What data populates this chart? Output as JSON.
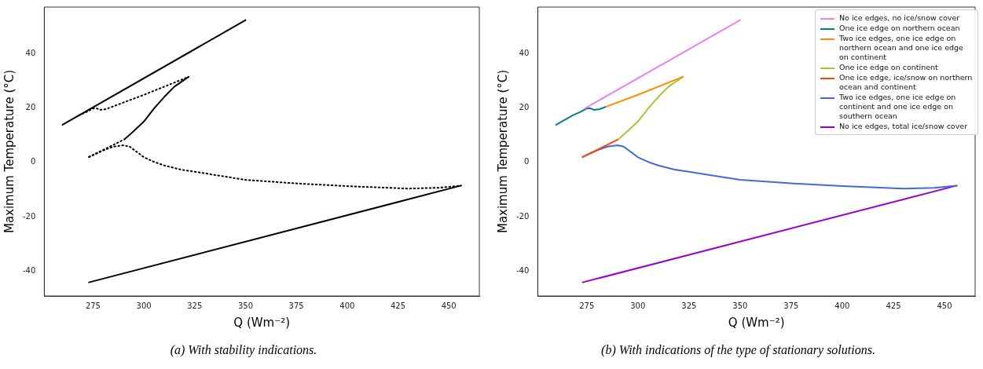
{
  "chart_data": [
    {
      "type": "line",
      "annotations": [
        "(a) With stability indications."
      ],
      "xlabel": "Q (Wm⁻²)",
      "ylabel": "Maximum Temperature (°C)",
      "xlim": [
        251,
        465
      ],
      "ylim": [
        -49,
        57
      ],
      "xticks": [
        275,
        300,
        325,
        350,
        375,
        400,
        425,
        450
      ],
      "yticks": [
        -40,
        -20,
        0,
        20,
        40
      ],
      "grid": false,
      "legend": false,
      "series": [
        {
          "color": "#000000",
          "line_style": "solid",
          "x": [
            260,
            350
          ],
          "values": [
            13.8,
            52.2
          ]
        },
        {
          "color": "#000000",
          "line_style": "dotted",
          "x": [
            268,
            272,
            275,
            276.5,
            278.5,
            281,
            284,
            300,
            322
          ],
          "values": [
            17.2,
            18.6,
            19.8,
            19.9,
            19.3,
            19.5,
            20.3,
            24.8,
            31.4
          ]
        },
        {
          "color": "#000000",
          "line_style": "solid",
          "x": [
            290.5,
            295,
            300,
            305,
            310,
            315,
            322
          ],
          "values": [
            8.5,
            11.5,
            15,
            19.8,
            24,
            27.8,
            31.4
          ]
        },
        {
          "color": "#000000",
          "line_style": "dotted",
          "x": [
            273,
            290.5
          ],
          "values": [
            2,
            8.5
          ]
        },
        {
          "color": "#000000",
          "line_style": "dotted",
          "x": [
            273,
            280,
            285,
            290,
            293,
            297,
            300,
            305,
            310,
            318,
            325,
            340,
            350,
            375,
            400,
            430,
            445,
            456
          ],
          "values": [
            2,
            4.4,
            5.8,
            6.3,
            5.8,
            3.6,
            1.9,
            0.2,
            -1.1,
            -2.6,
            -3.4,
            -5.2,
            -6.4,
            -7.7,
            -8.7,
            -9.6,
            -9.3,
            -8.5
          ]
        },
        {
          "color": "#000000",
          "line_style": "solid",
          "x": [
            273,
            456
          ],
          "values": [
            -44,
            -8.5
          ]
        }
      ]
    },
    {
      "type": "line",
      "annotations": [
        "(b) With indications of the type of stationary solutions."
      ],
      "xlabel": "Q (Wm⁻²)",
      "ylabel": "Maximum Temperature (°C)",
      "xlim": [
        251,
        465
      ],
      "ylim": [
        -49,
        57
      ],
      "xticks": [
        275,
        300,
        325,
        350,
        375,
        400,
        425,
        450
      ],
      "yticks": [
        -40,
        -20,
        0,
        20,
        40
      ],
      "grid": false,
      "legend": "top right",
      "series": [
        {
          "name": "No ice edges, no ice/snow cover",
          "color": "#ee82ee",
          "x": [
            274,
            350
          ],
          "values": [
            19.8,
            52.2
          ]
        },
        {
          "name": "One ice edge on northern ocean",
          "color": "#008080",
          "x": [
            260,
            268,
            272,
            275,
            276.5,
            278.5,
            281,
            284
          ],
          "values": [
            13.8,
            17.2,
            18.6,
            19.8,
            19.9,
            19.3,
            19.5,
            20.3
          ]
        },
        {
          "name": "Two ice edges, one ice edge on northern ocean and one ice edge on continent",
          "color": "#ff8c00",
          "x": [
            284,
            300,
            322
          ],
          "values": [
            20.3,
            24.8,
            31.4
          ]
        },
        {
          "name": "One ice edge on continent",
          "color": "#9acd32",
          "x": [
            290.5,
            295,
            300,
            305,
            310,
            315,
            322
          ],
          "values": [
            8.5,
            11.5,
            15,
            19.8,
            24,
            27.8,
            31.4
          ]
        },
        {
          "name": "One ice edge, ice/snow on northern ocean and continent",
          "color": "#ff4500",
          "x": [
            273,
            290.5
          ],
          "values": [
            2,
            8.5
          ]
        },
        {
          "name": "Two ice edges, one ice edge on continent and one ice edge on southern ocean",
          "color": "#4169e1",
          "x": [
            273,
            280,
            285,
            290,
            293,
            297,
            300,
            305,
            310,
            318,
            325,
            340,
            350,
            375,
            400,
            430,
            445,
            456
          ],
          "values": [
            2,
            4.4,
            5.8,
            6.3,
            5.8,
            3.6,
            1.9,
            0.2,
            -1.1,
            -2.6,
            -3.4,
            -5.2,
            -6.4,
            -7.7,
            -8.7,
            -9.6,
            -9.3,
            -8.5
          ]
        },
        {
          "name": "No ice edges, total ice/snow cover",
          "color": "#9400d3",
          "x": [
            273,
            456
          ],
          "values": [
            -44,
            -8.5
          ]
        }
      ]
    }
  ]
}
